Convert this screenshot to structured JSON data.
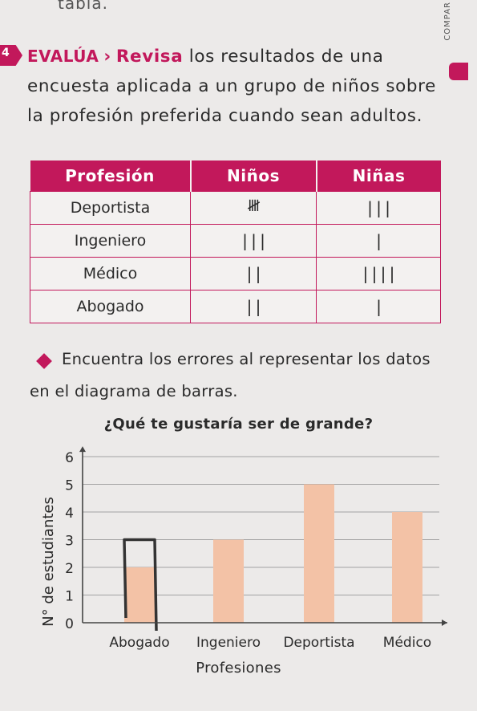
{
  "page": {
    "top_fragment": "tabla.",
    "side_text": "COMPAR",
    "side_number": "4"
  },
  "intro": {
    "tag": "EVALÚA",
    "tag_chevron": "›",
    "lead": "Revisa",
    "text": " los resultados de una encuesta aplicada a un grupo de niños sobre la profesión preferida cuando sean adultos."
  },
  "table": {
    "headers": [
      "Profesión",
      "Niños",
      "Niñas"
    ],
    "rows": [
      {
        "profesion": "Deportista",
        "ninos": "𝍸",
        "ninas": "|||"
      },
      {
        "profesion": "Ingeniero",
        "ninos": "|||",
        "ninas": "|"
      },
      {
        "profesion": "Médico",
        "ninos": "||",
        "ninas": "||||"
      },
      {
        "profesion": "Abogado",
        "ninos": "||",
        "ninas": "|"
      }
    ]
  },
  "instruction": "Encuentra los errores al representar los datos en el diagrama de barras.",
  "chart_data": {
    "type": "bar",
    "title": "¿Qué te gustaría ser de grande?",
    "categories": [
      "Abogado",
      "Ingeniero",
      "Deportista",
      "Médico"
    ],
    "values": [
      2,
      3,
      5,
      4
    ],
    "handdrawn_correction": {
      "category": "Abogado",
      "value": 3
    },
    "xlabel": "Profesiones",
    "ylabel": "N° de estudiantes",
    "yticks": [
      "0",
      "1",
      "2",
      "3",
      "4",
      "5",
      "6"
    ],
    "ylim": [
      0,
      6
    ],
    "grid": true,
    "colors": {
      "bar": "#f3c2a6",
      "pen": "#333333",
      "axis": "#444444"
    }
  }
}
